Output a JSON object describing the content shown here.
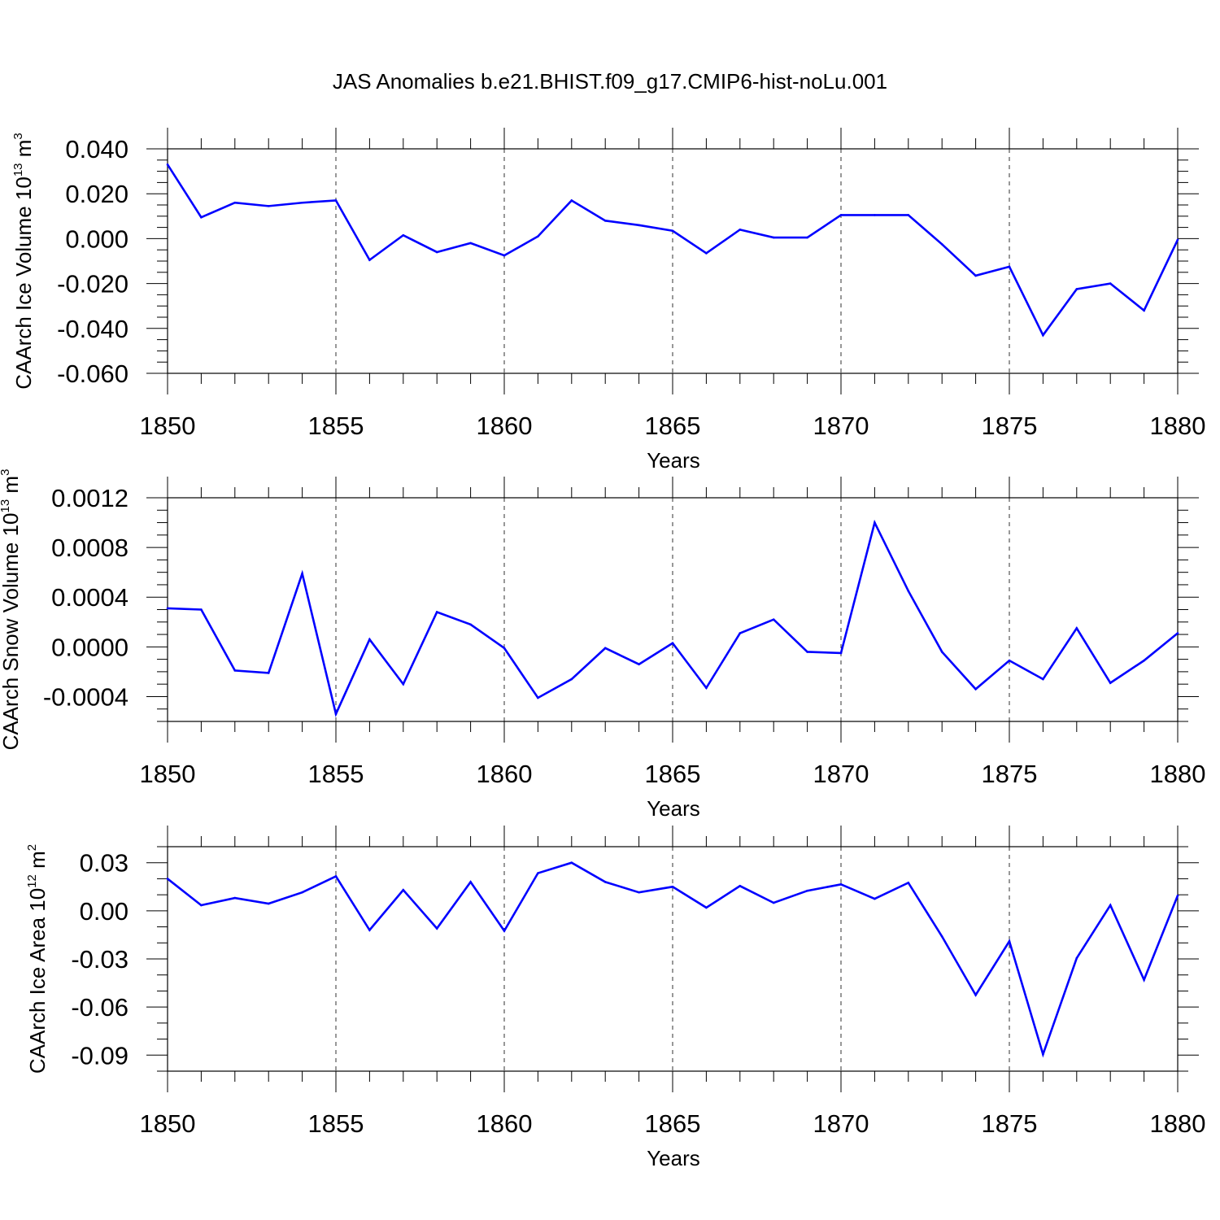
{
  "title": "JAS Anomalies b.e21.BHIST.f09_g17.CMIP6-hist-noLu.001",
  "line_color": "#0000ff",
  "chart_data": [
    {
      "type": "line",
      "title": "",
      "xlabel": "Years",
      "ylabel": {
        "pre": "CAArch Ice Volume 10",
        "exp": "13",
        "mid": " m",
        "unit_exp": "3"
      },
      "xlim": [
        1850,
        1880
      ],
      "ylim": [
        -0.06,
        0.04
      ],
      "x_ticks": [
        1850,
        1855,
        1860,
        1865,
        1870,
        1875,
        1880
      ],
      "x_tick_labels": [
        "1850",
        "1855",
        "1860",
        "1865",
        "1870",
        "1875",
        "1880"
      ],
      "y_ticks": [
        -0.06,
        -0.04,
        -0.02,
        0.0,
        0.02,
        0.04
      ],
      "y_tick_labels": [
        "-0.060",
        "-0.040",
        "-0.020",
        "0.000",
        "0.020",
        "0.040"
      ],
      "y_minor_step": 0.005,
      "x_minor_step": 1,
      "grid": "vertical dashed at major x ticks",
      "x": [
        1850,
        1851,
        1852,
        1853,
        1854,
        1855,
        1856,
        1857,
        1858,
        1859,
        1860,
        1861,
        1862,
        1863,
        1864,
        1865,
        1866,
        1867,
        1868,
        1869,
        1870,
        1871,
        1872,
        1873,
        1874,
        1875,
        1876,
        1877,
        1878,
        1879,
        1880
      ],
      "series": [
        {
          "values": [
            0.033,
            0.0095,
            0.016,
            0.0145,
            0.016,
            0.017,
            -0.0095,
            0.0015,
            -0.006,
            -0.002,
            -0.0075,
            0.001,
            0.017,
            0.008,
            0.006,
            0.0035,
            -0.0065,
            0.004,
            0.0005,
            0.0005,
            0.0105,
            0.0105,
            0.0105,
            -0.0025,
            -0.0165,
            -0.0125,
            -0.043,
            -0.0225,
            -0.02,
            -0.032,
            -0.0005
          ]
        }
      ]
    },
    {
      "type": "line",
      "title": "",
      "xlabel": "Years",
      "ylabel": {
        "pre": "CAArch Snow Volume 10",
        "exp": "13",
        "mid": " m",
        "unit_exp": "3"
      },
      "xlim": [
        1850,
        1880
      ],
      "ylim": [
        -0.0006,
        0.0012
      ],
      "x_ticks": [
        1850,
        1855,
        1860,
        1865,
        1870,
        1875,
        1880
      ],
      "x_tick_labels": [
        "1850",
        "1855",
        "1860",
        "1865",
        "1870",
        "1875",
        "1880"
      ],
      "y_ticks": [
        -0.0004,
        0.0,
        0.0004,
        0.0008,
        0.0012
      ],
      "y_tick_labels": [
        "-0.0004",
        "0.0000",
        "0.0004",
        "0.0008",
        "0.0012"
      ],
      "y_minor_step": 0.0001,
      "x_minor_step": 1,
      "grid": "vertical dashed at major x ticks",
      "x": [
        1850,
        1851,
        1852,
        1853,
        1854,
        1855,
        1856,
        1857,
        1858,
        1859,
        1860,
        1861,
        1862,
        1863,
        1864,
        1865,
        1866,
        1867,
        1868,
        1869,
        1870,
        1871,
        1872,
        1873,
        1874,
        1875,
        1876,
        1877,
        1878,
        1879,
        1880
      ],
      "series": [
        {
          "values": [
            0.00031,
            0.0003,
            -0.00019,
            -0.00021,
            0.00059,
            -0.00054,
            6e-05,
            -0.0003,
            0.00028,
            0.00018,
            -1e-05,
            -0.00041,
            -0.00026,
            -1e-05,
            -0.00014,
            3e-05,
            -0.00033,
            0.00011,
            0.00022,
            -4e-05,
            -5e-05,
            0.001,
            0.00045,
            -4e-05,
            -0.00034,
            -0.00011,
            -0.00026,
            0.00015,
            -0.00029,
            -0.00011,
            0.00011
          ]
        }
      ]
    },
    {
      "type": "line",
      "title": "",
      "xlabel": "Years",
      "ylabel": {
        "pre": "CAArch Ice Area 10",
        "exp": "12",
        "mid": " m",
        "unit_exp": "2"
      },
      "xlim": [
        1850,
        1880
      ],
      "ylim": [
        -0.1,
        0.04
      ],
      "x_ticks": [
        1850,
        1855,
        1860,
        1865,
        1870,
        1875,
        1880
      ],
      "x_tick_labels": [
        "1850",
        "1855",
        "1860",
        "1865",
        "1870",
        "1875",
        "1880"
      ],
      "y_ticks": [
        -0.09,
        -0.06,
        -0.03,
        0.0,
        0.03
      ],
      "y_tick_labels": [
        "-0.09",
        "-0.06",
        "-0.03",
        "0.00",
        "0.03"
      ],
      "y_minor_step": 0.01,
      "x_minor_step": 1,
      "grid": "vertical dashed at major x ticks",
      "x": [
        1850,
        1851,
        1852,
        1853,
        1854,
        1855,
        1856,
        1857,
        1858,
        1859,
        1860,
        1861,
        1862,
        1863,
        1864,
        1865,
        1866,
        1867,
        1868,
        1869,
        1870,
        1871,
        1872,
        1873,
        1874,
        1875,
        1876,
        1877,
        1878,
        1879,
        1880
      ],
      "series": [
        {
          "values": [
            0.02,
            0.0035,
            0.008,
            0.0045,
            0.0115,
            0.0215,
            -0.012,
            0.013,
            -0.011,
            0.018,
            -0.0125,
            0.0235,
            0.03,
            0.018,
            0.0115,
            0.015,
            0.002,
            0.0155,
            0.005,
            0.0125,
            0.0165,
            0.0075,
            0.0175,
            -0.016,
            -0.0525,
            -0.019,
            -0.0895,
            -0.0295,
            0.0035,
            -0.043,
            0.0095
          ]
        }
      ]
    }
  ]
}
